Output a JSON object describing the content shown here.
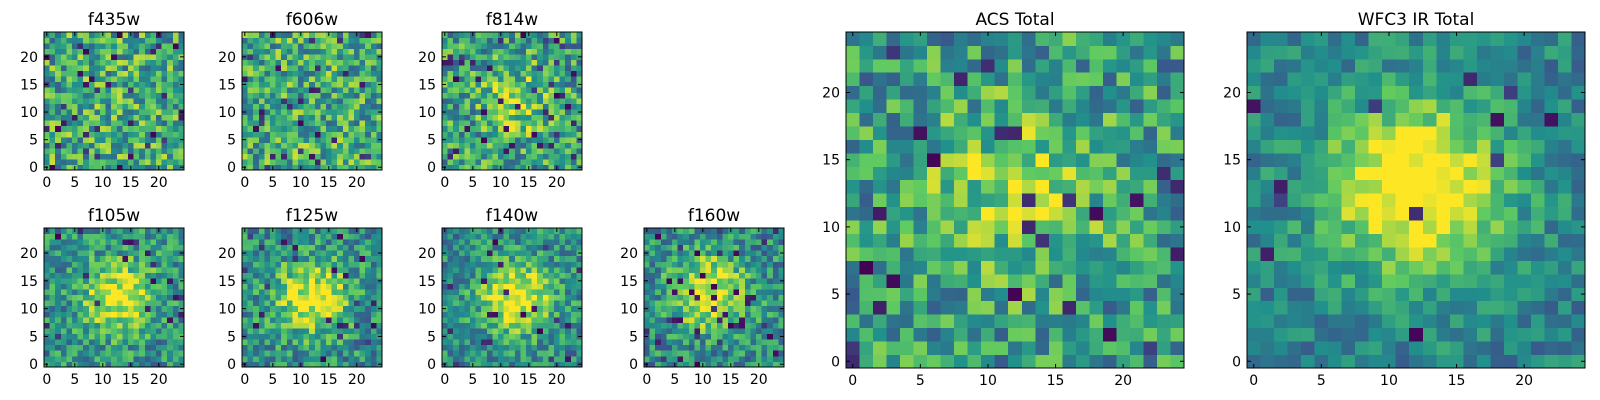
{
  "chart_data": [
    {
      "type": "heatmap",
      "title": "f435w",
      "xticks": [
        0,
        5,
        10,
        15,
        20
      ],
      "yticks": [
        0,
        5,
        10,
        15,
        20
      ],
      "xlim": [
        -0.5,
        24.5
      ],
      "ylim": [
        -0.5,
        24.5
      ],
      "grid": false,
      "size": 25,
      "colormap": "viridis",
      "center_peak": 0.0,
      "peak_x": 12,
      "peak_y": 12,
      "noise": 0.55,
      "dark_fraction": 0.06
    },
    {
      "type": "heatmap",
      "title": "f606w",
      "xticks": [
        0,
        5,
        10,
        15,
        20
      ],
      "yticks": [
        0,
        5,
        10,
        15,
        20
      ],
      "xlim": [
        -0.5,
        24.5
      ],
      "ylim": [
        -0.5,
        24.5
      ],
      "grid": false,
      "size": 25,
      "colormap": "viridis",
      "center_peak": 0.0,
      "peak_x": 12,
      "peak_y": 12,
      "noise": 0.55,
      "dark_fraction": 0.05
    },
    {
      "type": "heatmap",
      "title": "f814w",
      "xticks": [
        0,
        5,
        10,
        15,
        20
      ],
      "yticks": [
        0,
        5,
        10,
        15,
        20
      ],
      "xlim": [
        -0.5,
        24.5
      ],
      "ylim": [
        -0.5,
        24.5
      ],
      "grid": false,
      "size": 25,
      "colormap": "viridis",
      "center_peak": 0.25,
      "peak_x": 13,
      "peak_y": 12,
      "noise": 0.55,
      "dark_fraction": 0.05
    },
    {
      "type": "heatmap",
      "title": "f105w",
      "xticks": [
        0,
        5,
        10,
        15,
        20
      ],
      "yticks": [
        0,
        5,
        10,
        15,
        20
      ],
      "xlim": [
        -0.5,
        24.5
      ],
      "ylim": [
        -0.5,
        24.5
      ],
      "grid": false,
      "size": 25,
      "colormap": "viridis",
      "center_peak": 0.5,
      "peak_x": 13,
      "peak_y": 12,
      "noise": 0.45,
      "dark_fraction": 0.03
    },
    {
      "type": "heatmap",
      "title": "f125w",
      "xticks": [
        0,
        5,
        10,
        15,
        20
      ],
      "yticks": [
        0,
        5,
        10,
        15,
        20
      ],
      "xlim": [
        -0.5,
        24.5
      ],
      "ylim": [
        -0.5,
        24.5
      ],
      "grid": false,
      "size": 25,
      "colormap": "viridis",
      "center_peak": 0.5,
      "peak_x": 12,
      "peak_y": 12,
      "noise": 0.45,
      "dark_fraction": 0.03
    },
    {
      "type": "heatmap",
      "title": "f140w",
      "xticks": [
        0,
        5,
        10,
        15,
        20
      ],
      "yticks": [
        0,
        5,
        10,
        15,
        20
      ],
      "xlim": [
        -0.5,
        24.5
      ],
      "ylim": [
        -0.5,
        24.5
      ],
      "grid": false,
      "size": 25,
      "colormap": "viridis",
      "center_peak": 0.55,
      "peak_x": 13,
      "peak_y": 12,
      "noise": 0.42,
      "dark_fraction": 0.03
    },
    {
      "type": "heatmap",
      "title": "f160w",
      "xticks": [
        0,
        5,
        10,
        15,
        20
      ],
      "yticks": [
        0,
        5,
        10,
        15,
        20
      ],
      "xlim": [
        -0.5,
        24.5
      ],
      "ylim": [
        -0.5,
        24.5
      ],
      "grid": false,
      "size": 25,
      "colormap": "viridis",
      "center_peak": 0.55,
      "peak_x": 11,
      "peak_y": 13,
      "noise": 0.45,
      "dark_fraction": 0.06
    },
    {
      "type": "heatmap",
      "title": "ACS Total",
      "xticks": [
        0,
        5,
        10,
        15,
        20
      ],
      "yticks": [
        0,
        5,
        10,
        15,
        20
      ],
      "xlim": [
        -0.5,
        24.5
      ],
      "ylim": [
        -0.5,
        24.5
      ],
      "grid": false,
      "size": 25,
      "colormap": "viridis",
      "center_peak": 0.3,
      "peak_x": 12,
      "peak_y": 13,
      "noise": 0.5,
      "dark_fraction": 0.04
    },
    {
      "type": "heatmap",
      "title": "WFC3 IR Total",
      "xticks": [
        0,
        5,
        10,
        15,
        20
      ],
      "yticks": [
        0,
        5,
        10,
        15,
        20
      ],
      "xlim": [
        -0.5,
        24.5
      ],
      "ylim": [
        -0.5,
        24.5
      ],
      "grid": false,
      "size": 25,
      "colormap": "viridis",
      "center_peak": 0.7,
      "peak_x": 12,
      "peak_y": 13,
      "noise": 0.3,
      "dark_fraction": 0.03
    }
  ],
  "colors": {
    "axis": "#000000",
    "background": "#ffffff",
    "viridis_stops": [
      "#440154",
      "#3b528b",
      "#21918c",
      "#5ec962",
      "#fde725"
    ]
  }
}
